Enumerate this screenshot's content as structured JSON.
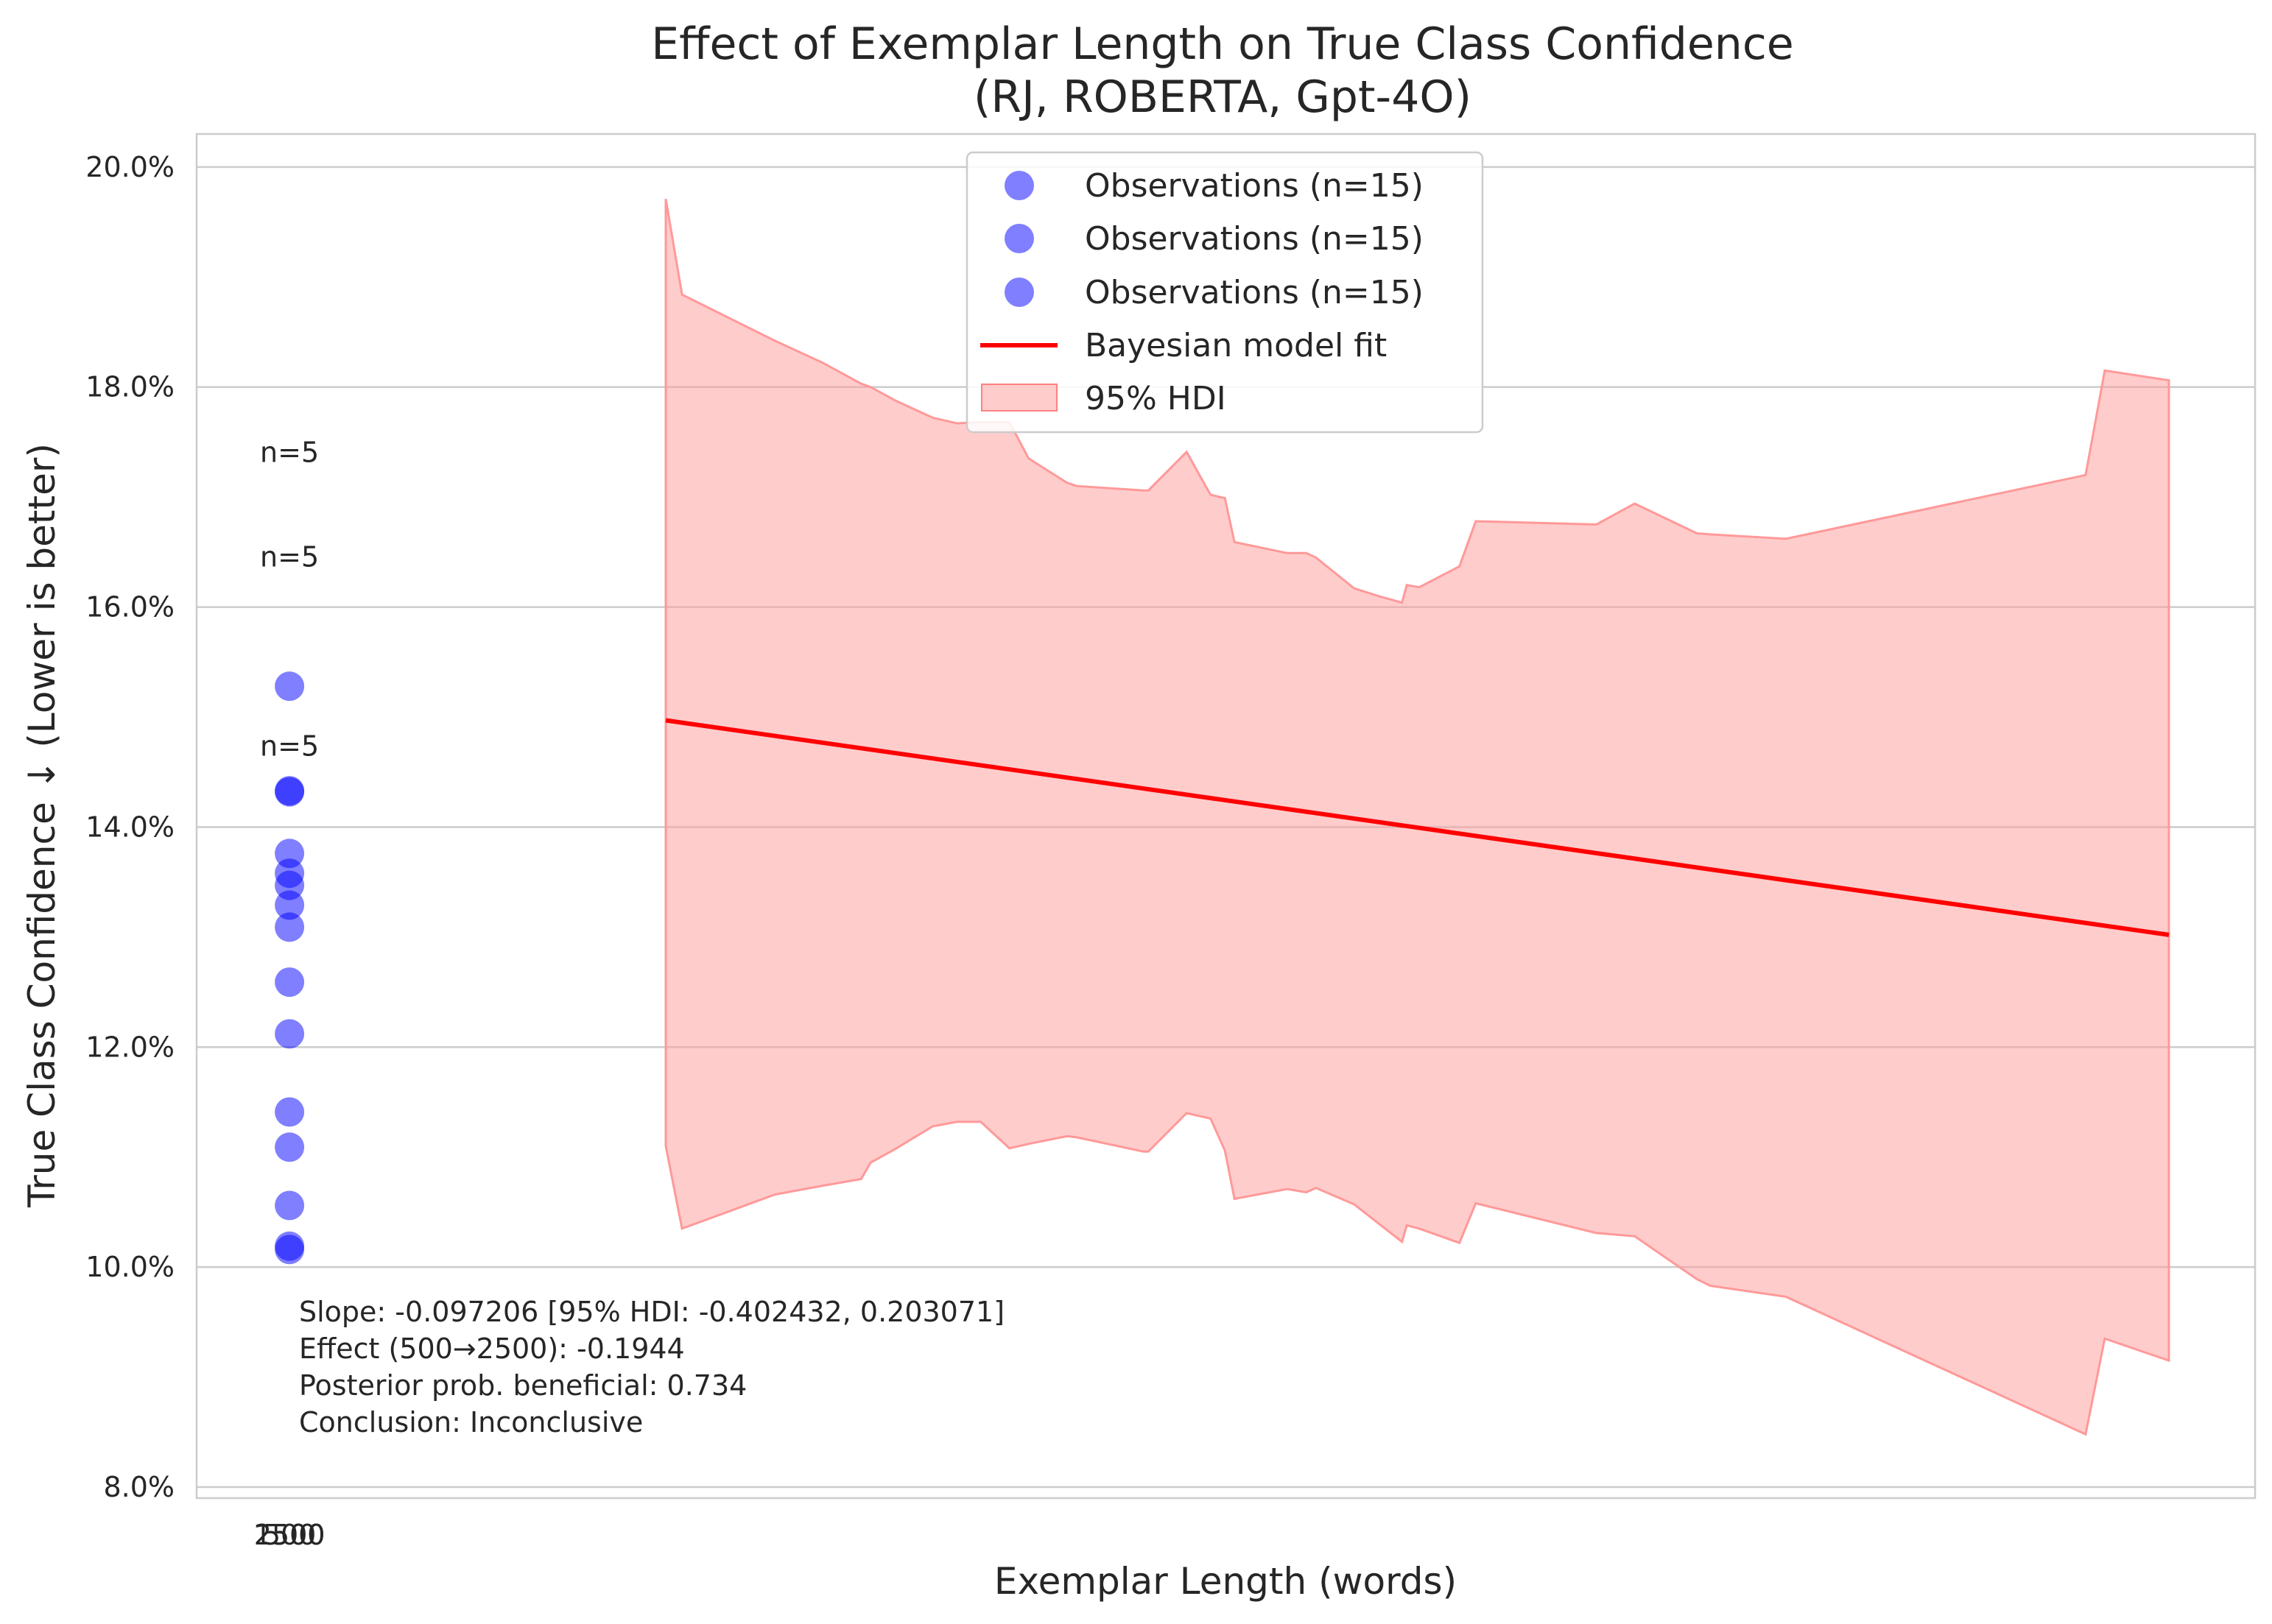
{
  "chart_data": {
    "type": "scatter",
    "title": "Effect of Exemplar Length on True Class Confidence",
    "subtitle": "(RJ, ROBERTA, Gpt-4O)",
    "xlabel": "Exemplar Length (words)",
    "ylabel": "True Class Confidence ↓ (Lower is better)",
    "x_tick_labels": [
      "2500",
      "1500",
      "500"
    ],
    "x_tick_value": 0.97,
    "xlim": [
      0.0,
      21.5
    ],
    "ylim": [
      7.9,
      20.3
    ],
    "y_ticks": [
      8.0,
      10.0,
      12.0,
      14.0,
      16.0,
      18.0,
      20.0
    ],
    "y_tick_labels": [
      "8.0%",
      "10.0%",
      "12.0%",
      "14.0%",
      "16.0%",
      "18.0%",
      "20.0%"
    ],
    "grid": "horizontal",
    "legend_position": "upper center",
    "colors": {
      "points": "#0000ff",
      "fit": "#ff0000",
      "hdi": "#ff9999"
    },
    "series": [
      {
        "name": "Observations (n=15)",
        "kind": "points",
        "x": [
          0.97,
          0.97,
          0.97,
          0.97,
          0.97,
          0.97,
          0.97,
          0.97,
          0.97,
          0.97,
          0.97,
          0.97,
          0.97,
          0.97,
          0.97
        ],
        "values": [
          15.28,
          14.33,
          14.32,
          13.76,
          13.58,
          13.47,
          13.29,
          13.09,
          12.59,
          12.12,
          11.41,
          11.09,
          10.56,
          10.19,
          10.16
        ]
      },
      {
        "name": "Observations (n=15)",
        "kind": "points",
        "x": [],
        "values": []
      },
      {
        "name": "Observations (n=15)",
        "kind": "points",
        "x": [],
        "values": []
      },
      {
        "name": "Bayesian model fit",
        "kind": "line",
        "x": [
          4.9,
          20.6
        ],
        "values": [
          14.97,
          13.02
        ]
      },
      {
        "name": "95% HDI",
        "kind": "band",
        "x": [
          4.9,
          4.9,
          5.07,
          6.04,
          6.54,
          6.94,
          7.04,
          7.29,
          7.69,
          7.94,
          8.19,
          8.49,
          8.69,
          9.09,
          9.19,
          9.89,
          9.94,
          10.34,
          10.59,
          10.74,
          10.84,
          11.39,
          11.59,
          11.69,
          12.09,
          12.34,
          12.59,
          12.64,
          12.77,
          13.19,
          13.36,
          14.62,
          15.02,
          15.67,
          15.81,
          16.6,
          19.73,
          19.93,
          20.6
        ],
        "upper": [
          19.71,
          19.71,
          18.84,
          18.42,
          18.22,
          18.03,
          18.0,
          17.88,
          17.72,
          17.67,
          17.68,
          17.68,
          17.35,
          17.13,
          17.1,
          17.06,
          17.06,
          17.41,
          17.02,
          16.99,
          16.59,
          16.49,
          16.49,
          16.45,
          16.17,
          16.1,
          16.04,
          16.2,
          16.18,
          16.37,
          16.78,
          16.75,
          16.94,
          16.67,
          16.66,
          16.62,
          17.2,
          18.15,
          18.06
        ],
        "lower": [
          11.1,
          11.1,
          10.35,
          10.66,
          10.74,
          10.8,
          10.95,
          11.07,
          11.28,
          11.32,
          11.32,
          11.08,
          11.12,
          11.19,
          11.18,
          11.05,
          11.05,
          11.4,
          11.35,
          11.06,
          10.62,
          10.71,
          10.68,
          10.72,
          10.57,
          10.4,
          10.23,
          10.38,
          10.35,
          10.22,
          10.58,
          10.31,
          10.28,
          9.89,
          9.83,
          9.73,
          8.48,
          9.35,
          9.15
        ]
      }
    ],
    "annotations": [
      {
        "text": "n=5",
        "x": 0.97,
        "y": 17.32
      },
      {
        "text": "n=5",
        "x": 0.97,
        "y": 16.37
      },
      {
        "text": "n=5",
        "x": 0.97,
        "y": 14.65
      }
    ],
    "stats_text": [
      "Slope: -0.097206 [95% HDI: -0.402432, 0.203071]",
      "Effect (500→2500): -0.1944",
      "Posterior prob. beneficial: 0.734",
      "Conclusion: Inconclusive"
    ]
  }
}
